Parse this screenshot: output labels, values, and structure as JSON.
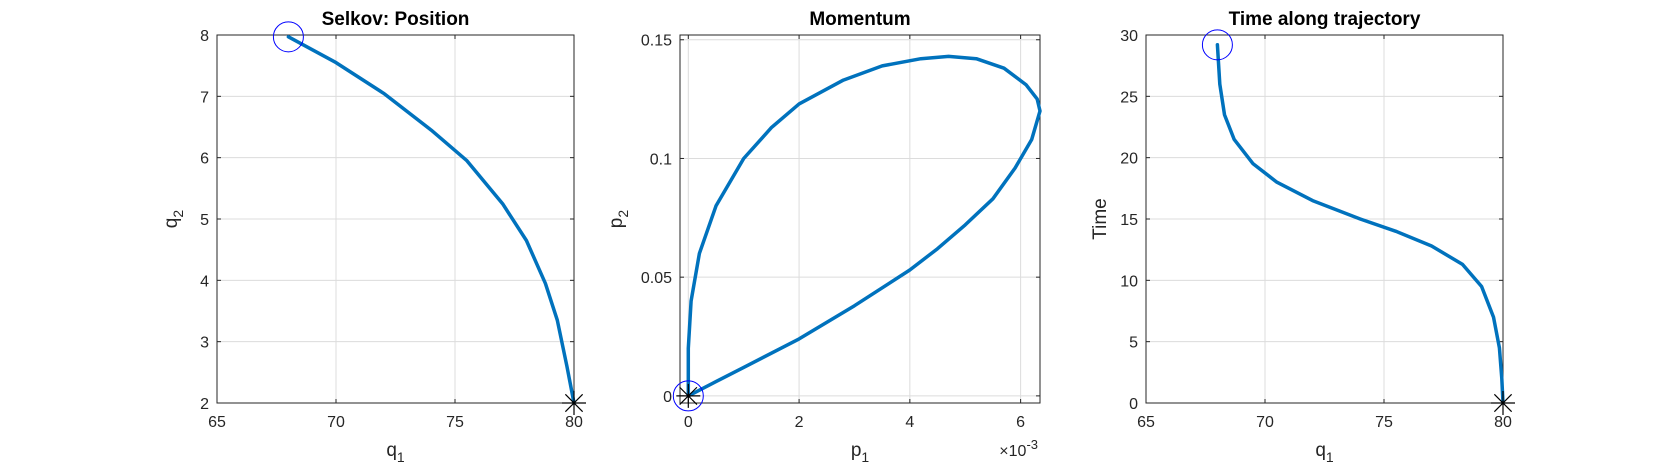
{
  "figure": {
    "background": "#ffffff",
    "line_color": "#0072bd",
    "start_marker_color": "#0000ff",
    "end_marker_color": "#000000",
    "grid_color": "#dcdcdc"
  },
  "chart_data": [
    {
      "type": "line",
      "title": "Selkov: Position",
      "xlabel": "q",
      "xlabel_sub": "1",
      "ylabel": "q",
      "ylabel_sub": "2",
      "xlim": [
        65,
        80
      ],
      "ylim": [
        2,
        8
      ],
      "xticks": [
        65,
        70,
        75,
        80
      ],
      "yticks": [
        2,
        3,
        4,
        5,
        6,
        7,
        8
      ],
      "xticklabels": [
        "65",
        "70",
        "75",
        "80"
      ],
      "yticklabels": [
        "2",
        "3",
        "4",
        "5",
        "6",
        "7",
        "8"
      ],
      "grid": true,
      "series": [
        {
          "x": [
            68.0,
            70.0,
            72.0,
            74.0,
            75.5,
            77.0,
            78.0,
            78.8,
            79.3,
            79.7,
            80.0
          ],
          "y": [
            7.97,
            7.55,
            7.05,
            6.45,
            5.95,
            5.25,
            4.65,
            3.95,
            3.35,
            2.6,
            2.0
          ]
        }
      ],
      "start_marker": {
        "x": 68.0,
        "y": 7.97
      },
      "end_marker": {
        "x": 80.0,
        "y": 2.0
      }
    },
    {
      "type": "line",
      "title": "Momentum",
      "xlabel": "p",
      "xlabel_sub": "1",
      "ylabel": "p",
      "ylabel_sub": "2",
      "x_exponent_label": "×10",
      "x_exponent": "-3",
      "xlim": [
        -0.15,
        6.35
      ],
      "ylim": [
        -0.003,
        0.152
      ],
      "xticks": [
        0,
        2,
        4,
        6
      ],
      "yticks": [
        0,
        0.05,
        0.1,
        0.15
      ],
      "xticklabels": [
        "0",
        "2",
        "4",
        "6"
      ],
      "yticklabels": [
        "0",
        "0.05",
        "0.1",
        "0.15"
      ],
      "grid": true,
      "series": [
        {
          "x": [
            0.0,
            0.0,
            0.05,
            0.2,
            0.5,
            1.0,
            1.5,
            2.0,
            2.8,
            3.5,
            4.2,
            4.7,
            5.2,
            5.7,
            6.1,
            6.3,
            6.35,
            6.2,
            5.9,
            5.5,
            5.0,
            4.5,
            4.0,
            3.0,
            2.0,
            1.0,
            0.5,
            0.0
          ],
          "y": [
            0.0,
            0.02,
            0.04,
            0.06,
            0.08,
            0.1,
            0.113,
            0.123,
            0.133,
            0.139,
            0.142,
            0.143,
            0.142,
            0.138,
            0.131,
            0.125,
            0.12,
            0.108,
            0.096,
            0.083,
            0.072,
            0.062,
            0.053,
            0.038,
            0.024,
            0.012,
            0.006,
            0.0
          ]
        }
      ],
      "start_marker": {
        "x": 0.0,
        "y": 0.0
      },
      "end_marker": {
        "x": 0.0,
        "y": 0.0
      }
    },
    {
      "type": "line",
      "title": "Time along trajectory",
      "xlabel": "q",
      "xlabel_sub": "1",
      "ylabel": "Time",
      "ylabel_sub": "",
      "xlim": [
        65,
        80
      ],
      "ylim": [
        0,
        30
      ],
      "xticks": [
        65,
        70,
        75,
        80
      ],
      "yticks": [
        0,
        5,
        10,
        15,
        20,
        25,
        30
      ],
      "xticklabels": [
        "65",
        "70",
        "75",
        "80"
      ],
      "yticklabels": [
        "0",
        "5",
        "10",
        "15",
        "20",
        "25",
        "30"
      ],
      "grid": true,
      "series": [
        {
          "x": [
            68.0,
            68.1,
            68.3,
            68.7,
            69.5,
            70.5,
            72.0,
            74.0,
            75.5,
            77.0,
            78.3,
            79.1,
            79.6,
            79.85,
            79.95,
            80.0
          ],
          "y": [
            29.2,
            26.0,
            23.5,
            21.5,
            19.5,
            18.0,
            16.5,
            15.0,
            14.0,
            12.8,
            11.3,
            9.5,
            7.0,
            4.5,
            2.0,
            0.0
          ]
        }
      ],
      "start_marker": {
        "x": 68.0,
        "y": 29.2
      },
      "end_marker": {
        "x": 80.0,
        "y": 0.0
      }
    }
  ]
}
